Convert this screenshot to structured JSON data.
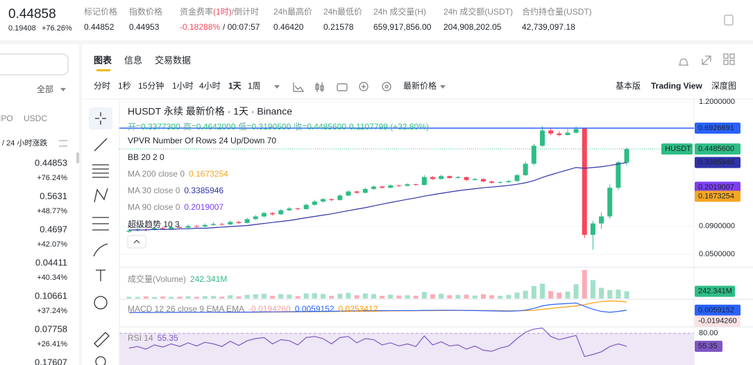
{
  "header": {
    "price": "0.44858",
    "change": "0.19408",
    "change_pct": "+76.26%",
    "up_color": "#20b26c",
    "stats": [
      {
        "label": "标记价格",
        "value": "0.44852"
      },
      {
        "label": "指数价格",
        "value": "0.44953"
      },
      {
        "label": "资金费率",
        "label_note": "(1时)",
        "label_tail": "/倒计时",
        "note_color": "#f6465d",
        "value": "-0.18288%",
        "value_color": "#f6465d",
        "value_tail": "/ 00:07:57"
      },
      {
        "label": "24h最高价",
        "value": "0.46420"
      },
      {
        "label": "24h最低价",
        "value": "0.21578"
      },
      {
        "label": "24h 成交量(H)",
        "value": "659,917,856.00"
      },
      {
        "label": "24h 成交额(USDT)",
        "value": "204,908,202.05"
      },
      {
        "label": "合约持仓量(USDT)",
        "value": "42,739,097.18"
      }
    ]
  },
  "sidebar": {
    "filter": "全部",
    "quotes": [
      "IPO",
      "USDC"
    ],
    "sort_label": "/ 24 小时涨跌",
    "rows": [
      {
        "price": "0.44853",
        "change": "+76.24%"
      },
      {
        "price": "0.5631",
        "change": "+48.77%"
      },
      {
        "price": "0.4697",
        "change": "+42.07%"
      },
      {
        "price": "0.04411",
        "change": "+40.34%"
      },
      {
        "price": "0.10661",
        "change": "+37.24%"
      },
      {
        "price": "0.07758",
        "change": "+26.41%"
      },
      {
        "price": "0.17607"
      }
    ]
  },
  "tabs": {
    "items": [
      "图表",
      "信息",
      "交易数据"
    ],
    "active": "图表"
  },
  "toolbar": {
    "intervals": [
      "分时",
      "1秒",
      "15分钟",
      "1小时",
      "4小时",
      "1天",
      "1周"
    ],
    "active": "1天",
    "price_type": "最新价格",
    "views": [
      "基本版",
      "Trading View",
      "深度图"
    ],
    "active_view": "Trading View"
  },
  "chart": {
    "legend": {
      "title": "HUSDT 永续 最新价格 · 1天 · Binance",
      "ohlc": [
        {
          "label": "开=",
          "value": "0.3377300"
        },
        {
          "label": "高=",
          "value": "0.4642000"
        },
        {
          "label": "低=",
          "value": "0.3190500"
        },
        {
          "label": "收=",
          "value": "0.4485600"
        }
      ],
      "ohlc_change": "0.1107799 (+32.80%)",
      "vpvr": "VPVR Number Of Rows 24 Up/Down 70",
      "bb": "BB 20 2 0",
      "ma": [
        {
          "text": "MA 200 close 0",
          "value": "0.1673254",
          "color": "#f5a623"
        },
        {
          "text": "MA 30 close 0",
          "value": "0.3385946",
          "color": "#2f33a8"
        },
        {
          "text": "MA 90 close 0",
          "value": "0.2019007",
          "color": "#7e3ff2"
        }
      ],
      "supertrend": "超级趋势 10 3"
    },
    "up_color": "#2ebd85",
    "down_color": "#f6465d",
    "price_axis": {
      "scale": "log",
      "ylim": [
        0.0386,
        1.2
      ],
      "ticks": [
        {
          "value": 1.2,
          "label": "1.2000000"
        },
        {
          "value": 0.09,
          "label": "0.0900000"
        },
        {
          "value": 0.05,
          "label": "0.0500000"
        }
      ],
      "markers": [
        {
          "value": 0.6926691,
          "label": "0.6926691",
          "color": "#2962ff",
          "line": "solid"
        },
        {
          "value": 0.44856,
          "label": "0.4485600",
          "color": "#2ebd85",
          "tag": "HUSDT",
          "line": "dotted"
        },
        {
          "value": 0.3385946,
          "label": "0.3385946",
          "color": "#2f33a8"
        },
        {
          "value": 0.2019007,
          "label": "0.2019007",
          "color": "#7e3ff2"
        },
        {
          "value": 0.1673254,
          "label": "0.1673254",
          "color": "#f5a623"
        }
      ]
    },
    "candles": [
      [
        0.08,
        0.085,
        0.078,
        0.082
      ],
      [
        0.082,
        0.087,
        0.08,
        0.084
      ],
      [
        0.084,
        0.086,
        0.081,
        0.083
      ],
      [
        0.083,
        0.088,
        0.082,
        0.086
      ],
      [
        0.086,
        0.088,
        0.083,
        0.085
      ],
      [
        0.085,
        0.09,
        0.084,
        0.088
      ],
      [
        0.088,
        0.09,
        0.085,
        0.087
      ],
      [
        0.087,
        0.093,
        0.086,
        0.09
      ],
      [
        0.09,
        0.092,
        0.087,
        0.089
      ],
      [
        0.089,
        0.095,
        0.088,
        0.092
      ],
      [
        0.092,
        0.097,
        0.09,
        0.094
      ],
      [
        0.094,
        0.096,
        0.091,
        0.093
      ],
      [
        0.093,
        0.101,
        0.092,
        0.098
      ],
      [
        0.098,
        0.1,
        0.094,
        0.096
      ],
      [
        0.096,
        0.107,
        0.095,
        0.104
      ],
      [
        0.104,
        0.113,
        0.102,
        0.11
      ],
      [
        0.11,
        0.121,
        0.108,
        0.118
      ],
      [
        0.118,
        0.12,
        0.112,
        0.115
      ],
      [
        0.115,
        0.128,
        0.114,
        0.125
      ],
      [
        0.125,
        0.134,
        0.123,
        0.13
      ],
      [
        0.13,
        0.132,
        0.125,
        0.128
      ],
      [
        0.128,
        0.144,
        0.127,
        0.14
      ],
      [
        0.14,
        0.155,
        0.138,
        0.15
      ],
      [
        0.15,
        0.162,
        0.147,
        0.158
      ],
      [
        0.158,
        0.16,
        0.151,
        0.155
      ],
      [
        0.155,
        0.175,
        0.153,
        0.17
      ],
      [
        0.17,
        0.19,
        0.168,
        0.185
      ],
      [
        0.185,
        0.188,
        0.176,
        0.18
      ],
      [
        0.18,
        0.2,
        0.178,
        0.195
      ],
      [
        0.195,
        0.21,
        0.192,
        0.205
      ],
      [
        0.205,
        0.208,
        0.196,
        0.2
      ],
      [
        0.2,
        0.215,
        0.198,
        0.21
      ],
      [
        0.21,
        0.213,
        0.204,
        0.208
      ],
      [
        0.208,
        0.22,
        0.206,
        0.215
      ],
      [
        0.215,
        0.218,
        0.208,
        0.212
      ],
      [
        0.212,
        0.26,
        0.21,
        0.25
      ],
      [
        0.25,
        0.255,
        0.236,
        0.24
      ],
      [
        0.24,
        0.262,
        0.238,
        0.255
      ],
      [
        0.255,
        0.258,
        0.24,
        0.245
      ],
      [
        0.245,
        0.256,
        0.242,
        0.25
      ],
      [
        0.25,
        0.252,
        0.23,
        0.235
      ],
      [
        0.235,
        0.245,
        0.232,
        0.24
      ],
      [
        0.24,
        0.243,
        0.225,
        0.228
      ],
      [
        0.228,
        0.232,
        0.218,
        0.222
      ],
      [
        0.222,
        0.23,
        0.219,
        0.225
      ],
      [
        0.225,
        0.236,
        0.221,
        0.23
      ],
      [
        0.23,
        0.268,
        0.226,
        0.26
      ],
      [
        0.26,
        0.345,
        0.255,
        0.33
      ],
      [
        0.33,
        0.5,
        0.32,
        0.48
      ],
      [
        0.48,
        0.72,
        0.47,
        0.66
      ],
      [
        0.66,
        0.7,
        0.6,
        0.62
      ],
      [
        0.62,
        0.65,
        0.585,
        0.6
      ],
      [
        0.6,
        0.68,
        0.595,
        0.63
      ],
      [
        0.63,
        0.72,
        0.62,
        0.68
      ],
      [
        0.69,
        0.7,
        0.07,
        0.075
      ],
      [
        0.075,
        0.1,
        0.055,
        0.095
      ],
      [
        0.095,
        0.12,
        0.085,
        0.11
      ],
      [
        0.11,
        0.215,
        0.105,
        0.2
      ],
      [
        0.2,
        0.35,
        0.19,
        0.34
      ],
      [
        0.33773,
        0.4642,
        0.31905,
        0.44856
      ]
    ],
    "ma30": [
      0.083,
      0.083,
      0.083,
      0.084,
      0.084,
      0.084,
      0.085,
      0.085,
      0.086,
      0.086,
      0.087,
      0.088,
      0.089,
      0.09,
      0.091,
      0.093,
      0.095,
      0.097,
      0.099,
      0.101,
      0.104,
      0.107,
      0.11,
      0.113,
      0.116,
      0.12,
      0.124,
      0.128,
      0.132,
      0.137,
      0.142,
      0.147,
      0.152,
      0.157,
      0.162,
      0.168,
      0.173,
      0.178,
      0.183,
      0.188,
      0.192,
      0.196,
      0.2,
      0.203,
      0.206,
      0.21,
      0.215,
      0.222,
      0.232,
      0.248,
      0.262,
      0.276,
      0.29,
      0.305,
      0.3,
      0.305,
      0.31,
      0.318,
      0.328,
      0.3385946
    ],
    "volume": {
      "title": "成交量(Volume)",
      "value": "242.341M",
      "ylim": [
        0,
        1000
      ],
      "marker": {
        "value": 242.341,
        "label": "242.341M"
      },
      "values": [
        60,
        55,
        70,
        50,
        65,
        58,
        62,
        75,
        55,
        80,
        85,
        60,
        110,
        70,
        120,
        140,
        160,
        90,
        150,
        130,
        80,
        170,
        180,
        150,
        90,
        160,
        190,
        110,
        170,
        150,
        90,
        130,
        100,
        110,
        95,
        220,
        140,
        160,
        110,
        120,
        130,
        100,
        140,
        110,
        90,
        120,
        200,
        260,
        420,
        500,
        250,
        200,
        230,
        480,
        960,
        620,
        360,
        280,
        300,
        242.341
      ]
    },
    "macd": {
      "title": "MACD 12 26 close 9 EMA EMA",
      "legend_values": [
        {
          "value": "-0.0194260",
          "color": "#f7a0a8"
        },
        {
          "value": "0.0059152",
          "color": "#2962ff"
        },
        {
          "value": "0.0253412",
          "color": "#ff9800"
        }
      ],
      "ylim": [
        -0.03,
        0.03
      ],
      "markers": [
        {
          "value": 0.0059152,
          "label": "0.0059152",
          "color": "#2962ff",
          "text_color": "#ffffff"
        },
        {
          "value": -0.019426,
          "label": "-0.0194260",
          "color": "#fde2e4",
          "text_color": "#1e2329"
        }
      ],
      "macd_color": "#2962ff",
      "signal_color": "#ff9800",
      "macd": [
        0.0005,
        0.0006,
        0.0006,
        0.0007,
        0.0007,
        0.0008,
        0.0008,
        0.0009,
        0.0009,
        0.001,
        0.0011,
        0.0011,
        0.0012,
        0.0012,
        0.0014,
        0.0016,
        0.0018,
        0.0019,
        0.0021,
        0.0023,
        0.0024,
        0.0027,
        0.003,
        0.0033,
        0.0034,
        0.0037,
        0.0041,
        0.0042,
        0.0045,
        0.0048,
        0.0049,
        0.005,
        0.005,
        0.0051,
        0.005,
        0.0055,
        0.0056,
        0.0058,
        0.0057,
        0.0056,
        0.0053,
        0.0051,
        0.0047,
        0.0042,
        0.0038,
        0.0036,
        0.0042,
        0.006,
        0.01,
        0.016,
        0.019,
        0.0205,
        0.0215,
        0.0228,
        0.015,
        0.008,
        0.003,
        0.001,
        0.003,
        0.0059152
      ],
      "signal": [
        0.0004,
        0.0005,
        0.0005,
        0.0006,
        0.0006,
        0.0007,
        0.0007,
        0.0008,
        0.0008,
        0.0009,
        0.0009,
        0.001,
        0.001,
        0.0011,
        0.0011,
        0.0012,
        0.0013,
        0.0015,
        0.0016,
        0.0018,
        0.0019,
        0.0021,
        0.0023,
        0.0025,
        0.0027,
        0.0029,
        0.0032,
        0.0034,
        0.0036,
        0.0038,
        0.004,
        0.0042,
        0.0044,
        0.0045,
        0.0046,
        0.0048,
        0.0049,
        0.0051,
        0.0052,
        0.0053,
        0.0053,
        0.0053,
        0.0052,
        0.005,
        0.0048,
        0.0046,
        0.0045,
        0.0048,
        0.0058,
        0.0078,
        0.01,
        0.0121,
        0.014,
        0.0158,
        0.019,
        0.023,
        0.026,
        0.0275,
        0.027,
        0.0253412
      ]
    },
    "rsi": {
      "title": "RSI 14",
      "value": "55.35",
      "color": "#7e57c2",
      "ylim": [
        20,
        100
      ],
      "ticks": [
        {
          "value": 80,
          "label": "80.00"
        }
      ],
      "marker": {
        "value": 55.35,
        "label": "55.35"
      },
      "values": [
        52,
        55,
        50,
        58,
        54,
        60,
        55,
        62,
        56,
        63,
        60,
        55,
        65,
        57,
        66,
        70,
        72,
        60,
        68,
        66,
        58,
        72,
        74,
        70,
        60,
        72,
        74,
        62,
        70,
        68,
        58,
        62,
        56,
        60,
        55,
        75,
        58,
        64,
        56,
        58,
        50,
        56,
        48,
        46,
        52,
        56,
        70,
        82,
        88,
        90,
        74,
        68,
        72,
        76,
        36,
        40,
        45,
        55,
        60,
        55.35
      ]
    }
  }
}
